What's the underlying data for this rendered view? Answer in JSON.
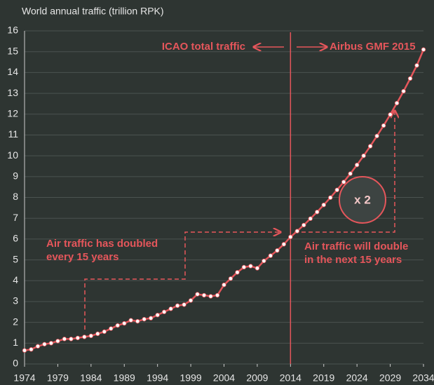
{
  "chart_data": {
    "type": "line",
    "y_axis_title": "World annual traffic (trillion RPK)",
    "x": [
      1974,
      1975,
      1976,
      1977,
      1978,
      1979,
      1980,
      1981,
      1982,
      1983,
      1984,
      1985,
      1986,
      1987,
      1988,
      1989,
      1990,
      1991,
      1992,
      1993,
      1994,
      1995,
      1996,
      1997,
      1998,
      1999,
      2000,
      2001,
      2002,
      2003,
      2004,
      2005,
      2006,
      2007,
      2008,
      2009,
      2010,
      2011,
      2012,
      2013,
      2014,
      2015,
      2016,
      2017,
      2018,
      2019,
      2020,
      2021,
      2022,
      2023,
      2024,
      2025,
      2026,
      2027,
      2028,
      2029,
      2030,
      2031,
      2032,
      2033,
      2034
    ],
    "series": [
      {
        "name": "World annual traffic",
        "color": "#e5565b",
        "values": [
          0.65,
          0.7,
          0.85,
          0.95,
          1.0,
          1.1,
          1.2,
          1.2,
          1.25,
          1.3,
          1.35,
          1.45,
          1.55,
          1.7,
          1.85,
          1.95,
          2.1,
          2.05,
          2.15,
          2.2,
          2.35,
          2.5,
          2.65,
          2.8,
          2.85,
          3.05,
          3.35,
          3.3,
          3.25,
          3.3,
          3.8,
          4.1,
          4.4,
          4.65,
          4.7,
          4.6,
          4.95,
          5.2,
          5.45,
          5.75,
          6.1,
          6.38,
          6.67,
          6.98,
          7.3,
          7.64,
          7.99,
          8.36,
          8.74,
          9.14,
          9.56,
          10.0,
          10.46,
          10.95,
          11.45,
          11.98,
          12.53,
          13.1,
          13.71,
          14.34,
          15.1
        ]
      }
    ],
    "xlim": [
      1974,
      2034
    ],
    "xticks": [
      1974,
      1979,
      1984,
      1989,
      1994,
      1999,
      2004,
      2009,
      2014,
      2019,
      2024,
      2029,
      2034
    ],
    "ylim": [
      0,
      16
    ],
    "yticks": [
      0,
      1,
      2,
      3,
      4,
      5,
      6,
      7,
      8,
      9,
      10,
      11,
      12,
      13,
      14,
      15,
      16
    ],
    "grid": true,
    "divider_x": 2014,
    "annotations": {
      "left_label": "ICAO total traffic",
      "right_label": "Airbus GMF 2015",
      "past": [
        "Air traffic has doubled",
        "every 15 years"
      ],
      "future": [
        "Air traffic will double",
        "in the next 15 years"
      ],
      "factor": "x 2"
    }
  }
}
